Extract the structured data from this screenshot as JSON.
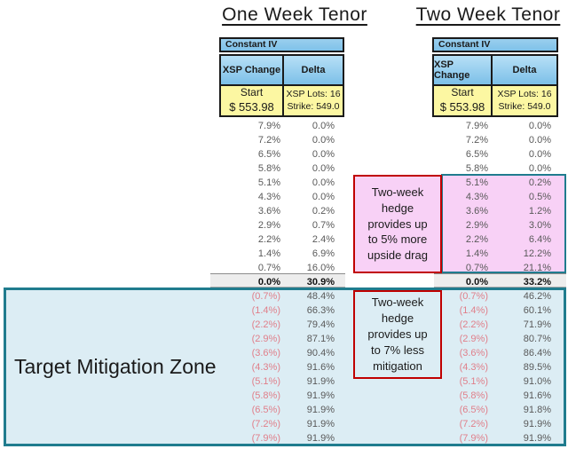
{
  "chart_data": [
    {
      "type": "table",
      "title": "One Week Tenor",
      "iv_mode": "Constant IV",
      "columns": [
        "XSP Change",
        "Delta"
      ],
      "start_label": "Start",
      "start_price": "$ 553.98",
      "xsp_lots_label": "XSP Lots: 16",
      "strike_label": "Strike: 549.0",
      "rows": [
        [
          "7.9%",
          "0.0%"
        ],
        [
          "7.2%",
          "0.0%"
        ],
        [
          "6.5%",
          "0.0%"
        ],
        [
          "5.8%",
          "0.0%"
        ],
        [
          "5.1%",
          "0.0%"
        ],
        [
          "4.3%",
          "0.0%"
        ],
        [
          "3.6%",
          "0.2%"
        ],
        [
          "2.9%",
          "0.7%"
        ],
        [
          "2.2%",
          "2.4%"
        ],
        [
          "1.4%",
          "6.9%"
        ],
        [
          "0.7%",
          "16.0%"
        ],
        [
          "0.0%",
          "30.9%"
        ],
        [
          "(0.7%)",
          "48.4%"
        ],
        [
          "(1.4%)",
          "66.3%"
        ],
        [
          "(2.2%)",
          "79.4%"
        ],
        [
          "(2.9%)",
          "87.1%"
        ],
        [
          "(3.6%)",
          "90.4%"
        ],
        [
          "(4.3%)",
          "91.6%"
        ],
        [
          "(5.1%)",
          "91.9%"
        ],
        [
          "(5.8%)",
          "91.9%"
        ],
        [
          "(6.5%)",
          "91.9%"
        ],
        [
          "(7.2%)",
          "91.9%"
        ],
        [
          "(7.9%)",
          "91.9%"
        ]
      ]
    },
    {
      "type": "table",
      "title": "Two Week Tenor",
      "iv_mode": "Constant IV",
      "columns": [
        "XSP Change",
        "Delta"
      ],
      "start_label": "Start",
      "start_price": "$ 553.98",
      "xsp_lots_label": "XSP Lots: 16",
      "strike_label": "Strike: 549.0",
      "rows": [
        [
          "7.9%",
          "0.0%"
        ],
        [
          "7.2%",
          "0.0%"
        ],
        [
          "6.5%",
          "0.0%"
        ],
        [
          "5.8%",
          "0.0%"
        ],
        [
          "5.1%",
          "0.2%"
        ],
        [
          "4.3%",
          "0.5%"
        ],
        [
          "3.6%",
          "1.2%"
        ],
        [
          "2.9%",
          "3.0%"
        ],
        [
          "2.2%",
          "6.4%"
        ],
        [
          "1.4%",
          "12.2%"
        ],
        [
          "0.7%",
          "21.1%"
        ],
        [
          "0.0%",
          "33.2%"
        ],
        [
          "(0.7%)",
          "46.2%"
        ],
        [
          "(1.4%)",
          "60.1%"
        ],
        [
          "(2.2%)",
          "71.9%"
        ],
        [
          "(2.9%)",
          "80.7%"
        ],
        [
          "(3.6%)",
          "86.4%"
        ],
        [
          "(4.3%)",
          "89.5%"
        ],
        [
          "(5.1%)",
          "91.0%"
        ],
        [
          "(5.8%)",
          "91.6%"
        ],
        [
          "(6.5%)",
          "91.8%"
        ],
        [
          "(7.2%)",
          "91.9%"
        ],
        [
          "(7.9%)",
          "91.9%"
        ]
      ]
    }
  ],
  "annotations": {
    "upside": "Two-week\nhedge\nprovides up\nto 5% more\nupside drag",
    "mitigation": "Two-week\nhedge\nprovides up\nto 7% less\nmitigation",
    "zone_label": "Target Mitigation Zone"
  },
  "colors": {
    "teal": "#207c8e",
    "red": "#c00000",
    "pink": "#f8d1f6",
    "lightblue": "#dcedf4",
    "yellow": "#fcf7a2",
    "ivtop": "#9acfee",
    "ivbot": "#7fc2e9",
    "hdrtop": "#b7e0f6",
    "hdrbot": "#7cc0e8",
    "grayband": "#ededed",
    "neg": "#e07f8a",
    "val": "#595959",
    "ink": "#1a1a1a"
  }
}
